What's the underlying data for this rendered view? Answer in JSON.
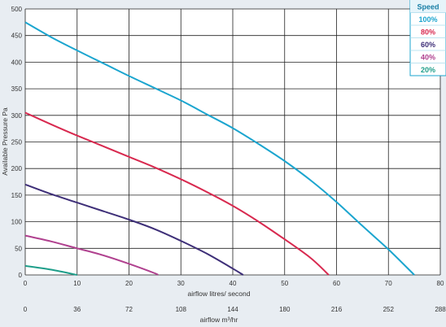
{
  "chart_data": {
    "type": "line",
    "xlabel": "airflow litres/ second",
    "xlabel2": "airflow m³/hr",
    "ylabel": "Available Pressure Pa",
    "xlim": [
      0,
      80
    ],
    "ylim": [
      0,
      500
    ],
    "x_ticks": [
      "0",
      "10",
      "20",
      "30",
      "40",
      "50",
      "60",
      "70",
      "80"
    ],
    "x2_ticks": [
      "0",
      "36",
      "72",
      "108",
      "144",
      "180",
      "216",
      "252",
      "288"
    ],
    "y_ticks": [
      "0",
      "50",
      "100",
      "150",
      "200",
      "250",
      "300",
      "350",
      "400",
      "450",
      "500"
    ],
    "grid": true,
    "legend_title": "Speed",
    "legend_placement": "top-right",
    "series": [
      {
        "name": "100%",
        "color": "#1ba5cf",
        "points": [
          [
            0,
            475
          ],
          [
            5,
            447
          ],
          [
            10,
            422
          ],
          [
            15,
            398
          ],
          [
            20,
            374
          ],
          [
            25,
            351
          ],
          [
            30,
            328
          ],
          [
            35,
            302
          ],
          [
            40,
            276
          ],
          [
            45,
            246
          ],
          [
            50,
            214
          ],
          [
            55,
            178
          ],
          [
            60,
            137
          ],
          [
            65,
            92
          ],
          [
            70,
            48
          ],
          [
            75,
            0
          ]
        ]
      },
      {
        "name": "80%",
        "color": "#d8294f",
        "points": [
          [
            0,
            305
          ],
          [
            5,
            283
          ],
          [
            10,
            262
          ],
          [
            15,
            242
          ],
          [
            20,
            222
          ],
          [
            25,
            202
          ],
          [
            30,
            180
          ],
          [
            35,
            156
          ],
          [
            40,
            130
          ],
          [
            45,
            100
          ],
          [
            50,
            67
          ],
          [
            55,
            32
          ],
          [
            58.5,
            0
          ]
        ]
      },
      {
        "name": "60%",
        "color": "#3e2f78",
        "points": [
          [
            0,
            170
          ],
          [
            5,
            152
          ],
          [
            10,
            136
          ],
          [
            15,
            120
          ],
          [
            20,
            104
          ],
          [
            25,
            86
          ],
          [
            30,
            64
          ],
          [
            35,
            40
          ],
          [
            40,
            12
          ],
          [
            42,
            0
          ]
        ]
      },
      {
        "name": "40%",
        "color": "#b0418f",
        "points": [
          [
            0,
            74
          ],
          [
            5,
            63
          ],
          [
            10,
            50
          ],
          [
            15,
            37
          ],
          [
            20,
            21
          ],
          [
            25,
            3
          ],
          [
            25.5,
            0
          ]
        ]
      },
      {
        "name": "20%",
        "color": "#1e9e8a",
        "points": [
          [
            0,
            17
          ],
          [
            5,
            10
          ],
          [
            10,
            0
          ]
        ]
      }
    ]
  }
}
